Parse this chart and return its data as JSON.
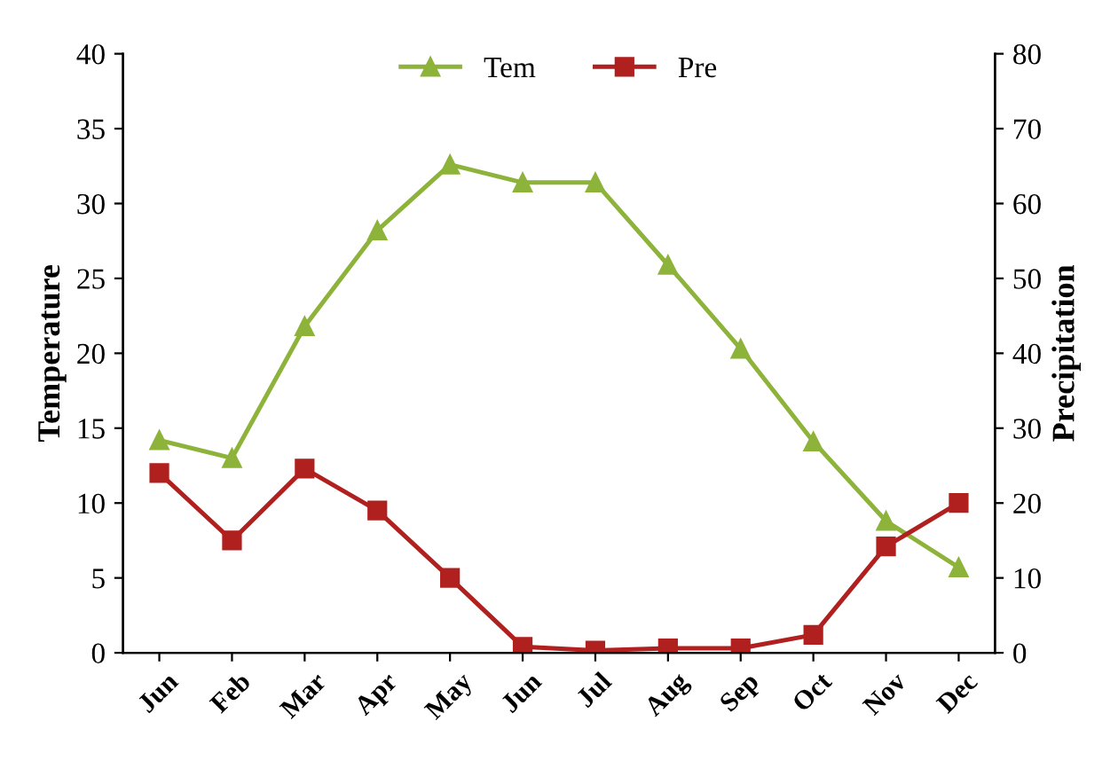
{
  "chart_data": {
    "type": "line",
    "ylabel": "Temperature",
    "y2label": "Precipitation",
    "categories": [
      "Jun",
      "Feb",
      "Mar",
      "Apr",
      "May",
      "Jun",
      "Jul",
      "Aug",
      "Sep",
      "Oct",
      "Nov",
      "Dec"
    ],
    "series": [
      {
        "name": "Tem",
        "color": "#8db33a",
        "marker": "triangle",
        "values": [
          14.2,
          13,
          21.8,
          28.2,
          32.6,
          31.4,
          31.4,
          25.9,
          20.3,
          14.1,
          8.8,
          5.7
        ]
      },
      {
        "name": "Pre",
        "color": "#b0201f",
        "marker": "square",
        "axis": "y2",
        "values": [
          24,
          15,
          24.6,
          19,
          10,
          0.8,
          0.3,
          0.6,
          0.6,
          2.4,
          14.2,
          20
        ]
      }
    ],
    "ylim": [
      0,
      40
    ],
    "yticks": [
      0,
      5,
      10,
      15,
      20,
      25,
      30,
      35,
      40
    ],
    "y2lim": [
      0,
      80
    ],
    "y2ticks": [
      0,
      10,
      20,
      30,
      40,
      50,
      60,
      70,
      80
    ],
    "legend": "top",
    "grid": false,
    "line_style": "solid"
  }
}
